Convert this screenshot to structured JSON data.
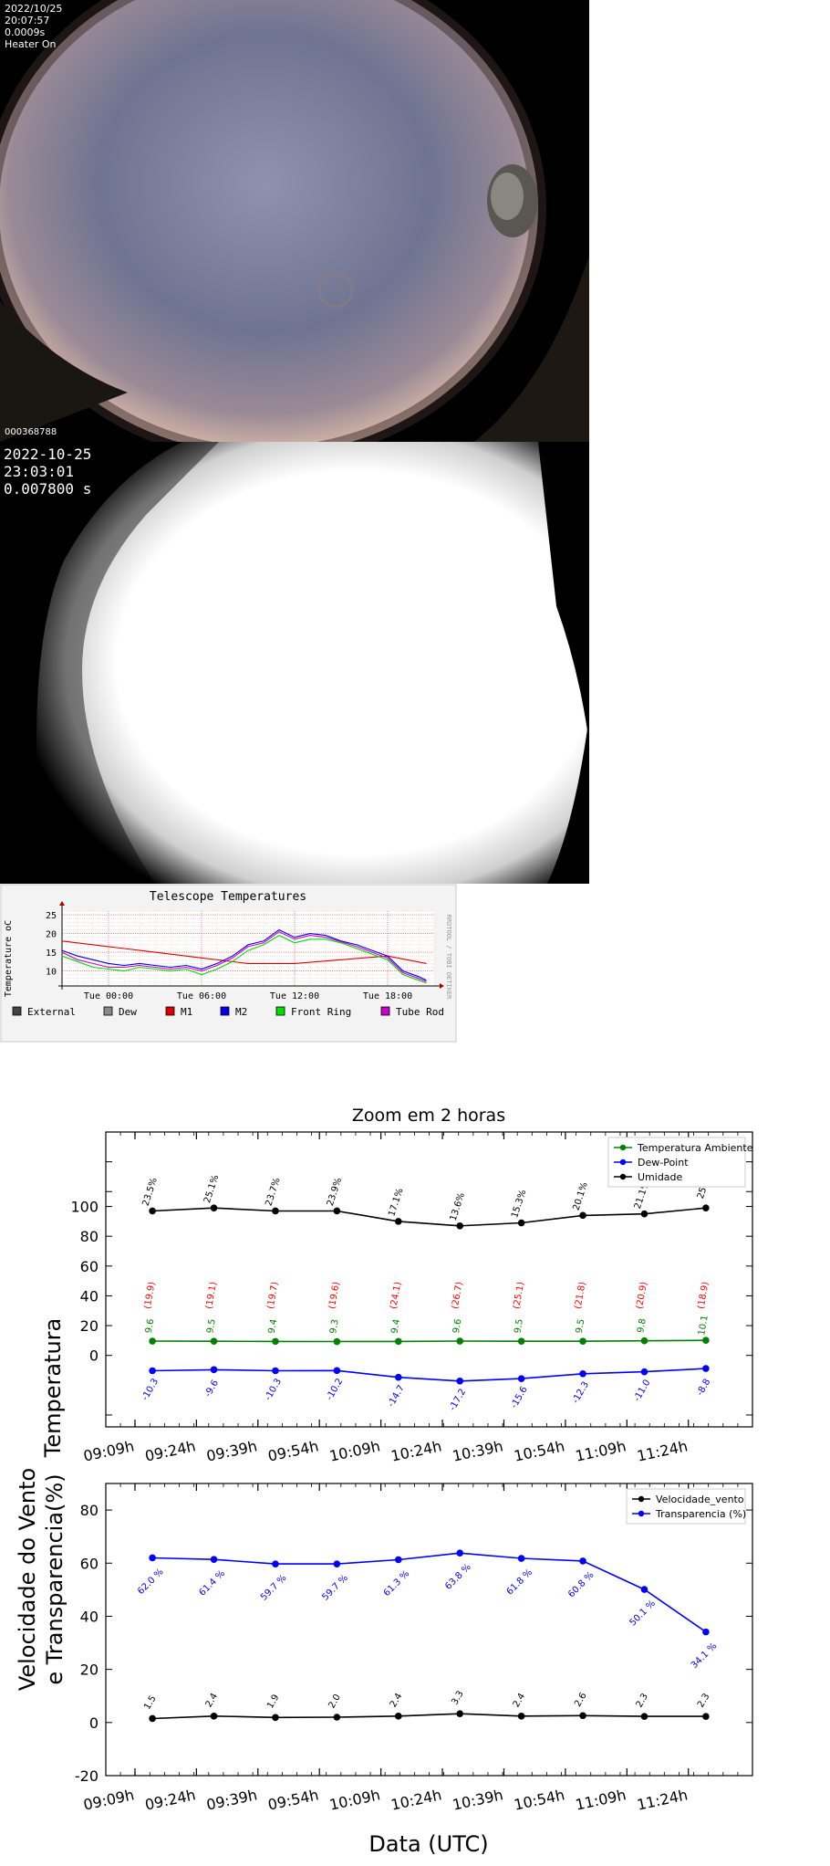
{
  "allsky1": {
    "date": "2022/10/25",
    "time": "20:07:57",
    "exposure": "0.0009s",
    "heater": "Heater On",
    "frame_id": "000368788"
  },
  "allsky2": {
    "date": "2022-10-25",
    "time": "23:03:01",
    "exposure": "0.007800 s"
  },
  "chart_data": [
    {
      "type": "line",
      "title": "Telescope Temperatures",
      "ylabel": "Temperature oC",
      "side_label": "RRDTOOL / TOBI OETIKER",
      "ylim": [
        6,
        26
      ],
      "yticks": [
        10,
        15,
        20,
        25
      ],
      "xlim": [
        -3,
        21
      ],
      "xticks": [
        0,
        6,
        12,
        18
      ],
      "xtick_labels": [
        "Tue 00:00",
        "Tue 06:00",
        "Tue 12:00",
        "Tue 18:00"
      ],
      "legend": [
        {
          "name": "External",
          "color": "#444444"
        },
        {
          "name": "Dew",
          "color": "#888888"
        },
        {
          "name": "M1",
          "color": "#dd0000"
        },
        {
          "name": "M2",
          "color": "#0000ee"
        },
        {
          "name": "Front Ring",
          "color": "#00dd00"
        },
        {
          "name": "Tube Rod",
          "color": "#cc00cc"
        }
      ],
      "series": [
        {
          "name": "M1",
          "color": "#dd0000",
          "x": [
            -3,
            0,
            3,
            6,
            9,
            12,
            15,
            18,
            20.5
          ],
          "y": [
            18,
            16.5,
            15,
            13.5,
            12,
            12,
            13,
            14,
            12
          ]
        },
        {
          "name": "M2",
          "color": "#0000ee",
          "x": [
            -3,
            -2,
            -1,
            0,
            1,
            2,
            3,
            4,
            5,
            6,
            7,
            8,
            9,
            10,
            11,
            12,
            13,
            14,
            15,
            16,
            17,
            18,
            19,
            20,
            20.5
          ],
          "y": [
            15.5,
            14,
            13,
            12,
            11.5,
            12,
            11.5,
            11,
            11.5,
            10.5,
            12,
            14,
            17,
            18,
            21,
            19,
            20,
            19.5,
            18,
            17,
            15.5,
            14,
            10,
            8.5,
            7.5
          ]
        },
        {
          "name": "Front Ring",
          "color": "#00dd00",
          "x": [
            -3,
            -2,
            -1,
            0,
            1,
            2,
            3,
            4,
            5,
            6,
            7,
            8,
            9,
            10,
            11,
            12,
            13,
            14,
            15,
            16,
            17,
            18,
            19,
            20,
            20.5
          ],
          "y": [
            14,
            12.5,
            11,
            10.5,
            10,
            11,
            10.5,
            10,
            10.5,
            9,
            10.5,
            12.5,
            15.5,
            17,
            19.5,
            17.5,
            18.5,
            18.5,
            17.5,
            16,
            14.5,
            13,
            9,
            7.5,
            6.8
          ]
        },
        {
          "name": "Tube Rod",
          "color": "#cc00cc",
          "x": [
            -3,
            -2,
            -1,
            0,
            1,
            2,
            3,
            4,
            5,
            6,
            7,
            8,
            9,
            10,
            11,
            12,
            13,
            14,
            15,
            16,
            17,
            18,
            19,
            20,
            20.5
          ],
          "y": [
            15,
            13,
            12,
            11,
            11,
            11.5,
            11,
            10.5,
            11,
            10,
            11.5,
            13.5,
            16.5,
            17.5,
            20.5,
            18.5,
            19.5,
            19,
            17.8,
            16.5,
            15,
            13.5,
            9.5,
            8,
            7.2
          ]
        }
      ]
    },
    {
      "type": "line",
      "title": "Zoom em 2 horas",
      "ylabel": "Temperatura",
      "yticks": [
        0,
        20,
        40,
        60,
        80,
        100
      ],
      "ylim": [
        -48,
        150
      ],
      "categories": [
        "09:09h",
        "09:24h",
        "09:39h",
        "09:54h",
        "10:09h",
        "10:24h",
        "10:39h",
        "10:54h",
        "11:09h",
        "11:24h"
      ],
      "series": [
        {
          "name": "Temperatura Ambiente",
          "color": "#008000",
          "values": [
            9.6,
            9.5,
            9.4,
            9.3,
            9.4,
            9.6,
            9.5,
            9.5,
            9.8,
            10.1
          ],
          "labels": [
            "9.6",
            "9.5",
            "9.4",
            "9.3",
            "9.4",
            "9.6",
            "9.5",
            "9.5",
            "9.8",
            "10.1"
          ]
        },
        {
          "name": "Dew-Point",
          "color": "#0000ff",
          "values": [
            -10.3,
            -9.6,
            -10.3,
            -10.2,
            -14.7,
            -17.2,
            -15.6,
            -12.3,
            -11.0,
            -8.8
          ],
          "labels": [
            "-10.3",
            "-9.6",
            "-10.3",
            "-10.2",
            "-14.7",
            "-17.2",
            "-15.6",
            "-12.3",
            "-11.0",
            "-8.8"
          ]
        },
        {
          "name": "Umidade",
          "color": "#000000",
          "values": [
            97,
            99,
            97,
            97,
            90,
            87,
            89,
            94,
            95,
            99
          ],
          "labels": [
            "23.5%",
            "25.1%",
            "23.7%",
            "23.9%",
            "17.1%",
            "13.6%",
            "15.3%",
            "20.1%",
            "21.1%",
            "25.2"
          ]
        }
      ],
      "annotations_red": [
        "(19.9)",
        "(19.1)",
        "(19.7)",
        "(19.6)",
        "(24.1)",
        "(26.7)",
        "(25.1)",
        "(21.8)",
        "(20.9)",
        "(18.9)"
      ]
    },
    {
      "type": "line",
      "ylabel_line1": "Velocidade do Vento",
      "ylabel_line2": "e Transparencia(%)",
      "xlabel": "Data (UTC)",
      "yticks": [
        -20,
        0,
        20,
        40,
        60,
        80
      ],
      "ylim": [
        -20,
        90
      ],
      "categories": [
        "09:09h",
        "09:24h",
        "09:39h",
        "09:54h",
        "10:09h",
        "10:24h",
        "10:39h",
        "10:54h",
        "11:09h",
        "11:24h"
      ],
      "series": [
        {
          "name": "Velocidade_vento",
          "color": "#000000",
          "values": [
            1.5,
            2.4,
            1.9,
            2.0,
            2.4,
            3.3,
            2.4,
            2.6,
            2.3,
            2.3
          ],
          "labels": [
            "1.5",
            "2.4",
            "1.9",
            "2.0",
            "2.4",
            "3.3",
            "2.4",
            "2.6",
            "2.3",
            "2.3"
          ]
        },
        {
          "name": "Transparencia (%)",
          "color": "#0000ff",
          "values": [
            62.0,
            61.4,
            59.7,
            59.7,
            61.3,
            63.8,
            61.8,
            60.8,
            50.1,
            34.1
          ],
          "labels": [
            "62.0 %",
            "61.4 %",
            "59.7 %",
            "59.7 %",
            "61.3 %",
            "63.8 %",
            "61.8 %",
            "60.8 %",
            "50.1 %",
            "34.1 %"
          ]
        }
      ]
    }
  ]
}
